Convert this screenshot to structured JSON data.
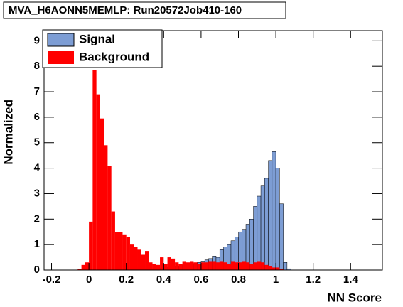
{
  "chart_data": {
    "type": "histogram",
    "title": "MVA_H6AONN5MEMLP: Run20572Job410-160",
    "x_label": "NN Score",
    "y_label": "Normalized",
    "bins": [
      -0.06,
      -0.04,
      -0.02,
      0,
      0.02,
      0.04,
      0.06,
      0.08,
      0.1,
      0.12,
      0.14,
      0.16,
      0.18,
      0.2,
      0.22,
      0.24,
      0.26,
      0.28,
      0.3,
      0.32,
      0.34,
      0.36,
      0.38,
      0.4,
      0.42,
      0.44,
      0.46,
      0.48,
      0.5,
      0.52,
      0.54,
      0.56,
      0.58,
      0.6,
      0.62,
      0.64,
      0.66,
      0.68,
      0.7,
      0.72,
      0.74,
      0.76,
      0.78,
      0.8,
      0.82,
      0.84,
      0.86,
      0.88,
      0.9,
      0.92,
      0.94,
      0.96,
      0.98,
      1,
      1.02,
      1.04,
      1.06,
      1.08,
      1.1
    ],
    "series": [
      {
        "name": "Signal",
        "color": "#7d9dd4",
        "values": [
          0,
          0,
          0,
          0,
          0,
          0,
          0,
          0,
          0,
          0,
          0,
          0,
          0,
          0,
          0,
          0,
          0,
          0.02,
          0.03,
          0.05,
          0.05,
          0.08,
          0.08,
          0.1,
          0.1,
          0.12,
          0.15,
          0.15,
          0.2,
          0.2,
          0.25,
          0.25,
          0.3,
          0.35,
          0.4,
          0.45,
          0.55,
          0.5,
          0.8,
          0.9,
          1.0,
          1.15,
          1.3,
          1.5,
          1.6,
          1.8,
          2.0,
          2.5,
          2.9,
          3.3,
          3.6,
          4.3,
          4.65,
          4.0,
          2.6,
          0.3,
          0.05,
          0
        ]
      },
      {
        "name": "Background",
        "color": "#ff0000",
        "values": [
          0.05,
          0.2,
          0.3,
          1.9,
          7.85,
          6.9,
          5.95,
          4.9,
          4.1,
          2.3,
          1.5,
          1.5,
          1.4,
          1.3,
          1.0,
          0.9,
          0.8,
          0.6,
          0.75,
          0.3,
          0.25,
          0.2,
          0.5,
          0.25,
          0.5,
          0.45,
          0.3,
          0.25,
          0.35,
          0.3,
          0.35,
          0.3,
          0.25,
          0.3,
          0.3,
          0.35,
          0.35,
          0.3,
          0.35,
          0.3,
          0.25,
          0.35,
          0.3,
          0.3,
          0.35,
          0.3,
          0.25,
          0.3,
          0.35,
          0.3,
          0.2,
          0.15,
          0.1,
          0.1,
          0.05,
          0,
          0,
          0
        ]
      }
    ],
    "xlim": [
      -0.24,
      1.57
    ],
    "ylim": [
      0,
      9.4
    ],
    "xticks": [
      -0.2,
      0,
      0.2,
      0.4,
      0.6,
      0.8,
      1,
      1.2,
      1.4
    ],
    "yticks": [
      0,
      1,
      2,
      3,
      4,
      5,
      6,
      7,
      8,
      9
    ]
  }
}
